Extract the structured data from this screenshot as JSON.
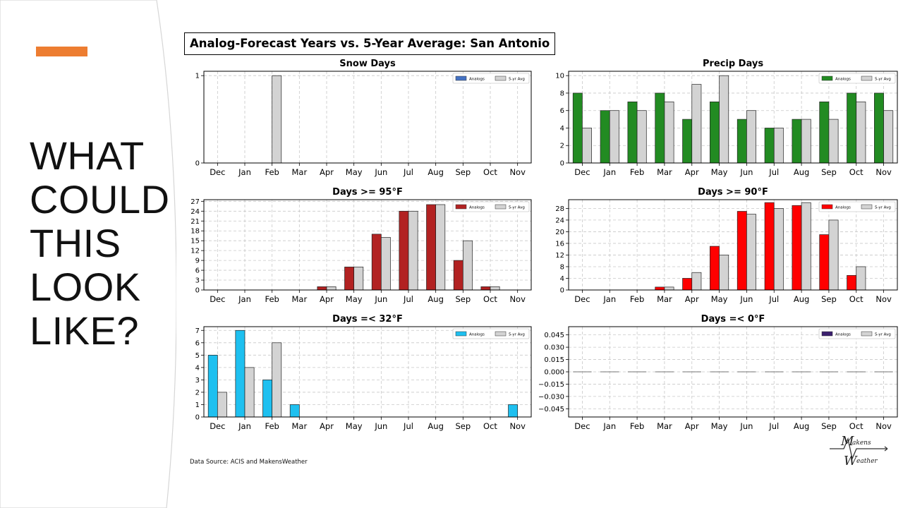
{
  "slide": {
    "heading_lines": [
      "WHAT",
      "COULD",
      "THIS",
      "LOOK",
      "LIKE?"
    ],
    "accent_color": "#ed7d31",
    "figure_title": "Analog-Forecast Years vs. 5-Year Average: San Antonio",
    "data_source": "Data Source: ACIS and MakensWeather",
    "logo": {
      "line1": "akens",
      "line2": "eather",
      "letter": "M",
      "letter2": "W"
    }
  },
  "chart_data": [
    {
      "type": "bar",
      "title": "Snow Days",
      "categories": [
        "Dec",
        "Jan",
        "Feb",
        "Mar",
        "Apr",
        "May",
        "Jun",
        "Jul",
        "Aug",
        "Sep",
        "Oct",
        "Nov"
      ],
      "ylim": [
        0,
        1.05
      ],
      "yticks": [
        0,
        1
      ],
      "ytick_labels": [
        "0",
        "1"
      ],
      "grid": true,
      "legend_position": "top-right",
      "series": [
        {
          "name": "Analogs",
          "color": "#4472c4",
          "values": [
            0,
            0,
            0,
            0,
            0,
            0,
            0,
            0,
            0,
            0,
            0,
            0
          ]
        },
        {
          "name": "5-yr Avg",
          "color": "#d3d3d3",
          "values": [
            0,
            0,
            1,
            0,
            0,
            0,
            0,
            0,
            0,
            0,
            0,
            0
          ]
        }
      ]
    },
    {
      "type": "bar",
      "title": "Precip Days",
      "categories": [
        "Dec",
        "Jan",
        "Feb",
        "Mar",
        "Apr",
        "May",
        "Jun",
        "Jul",
        "Aug",
        "Sep",
        "Oct",
        "Nov"
      ],
      "ylim": [
        0,
        10.5
      ],
      "yticks": [
        0,
        2,
        4,
        6,
        8,
        10
      ],
      "ytick_labels": [
        "0",
        "2",
        "4",
        "6",
        "8",
        "10"
      ],
      "grid": true,
      "legend_position": "top-right",
      "series": [
        {
          "name": "Analogs",
          "color": "#228b22",
          "values": [
            8,
            6,
            7,
            8,
            5,
            7,
            5,
            4,
            5,
            7,
            8,
            8
          ]
        },
        {
          "name": "5-yr Avg",
          "color": "#d3d3d3",
          "values": [
            4,
            6,
            6,
            7,
            9,
            10,
            6,
            4,
            5,
            5,
            7,
            6
          ]
        }
      ]
    },
    {
      "type": "bar",
      "title": "Days >= 95°F",
      "categories": [
        "Dec",
        "Jan",
        "Feb",
        "Mar",
        "Apr",
        "May",
        "Jun",
        "Jul",
        "Aug",
        "Sep",
        "Oct",
        "Nov"
      ],
      "ylim": [
        0,
        27.5
      ],
      "yticks": [
        0,
        3,
        6,
        9,
        12,
        15,
        18,
        21,
        24,
        27
      ],
      "ytick_labels": [
        "0",
        "3",
        "6",
        "9",
        "12",
        "15",
        "18",
        "21",
        "24",
        "27"
      ],
      "grid": true,
      "legend_position": "top-right",
      "series": [
        {
          "name": "Analogs",
          "color": "#b22222",
          "values": [
            0,
            0,
            0,
            0,
            1,
            7,
            17,
            24,
            26,
            9,
            1,
            0
          ]
        },
        {
          "name": "5-yr Avg",
          "color": "#d3d3d3",
          "values": [
            0,
            0,
            0,
            0,
            1,
            7,
            16,
            24,
            26,
            15,
            1,
            0
          ]
        }
      ]
    },
    {
      "type": "bar",
      "title": "Days >= 90°F",
      "categories": [
        "Dec",
        "Jan",
        "Feb",
        "Mar",
        "Apr",
        "May",
        "Jun",
        "Jul",
        "Aug",
        "Sep",
        "Oct",
        "Nov"
      ],
      "ylim": [
        0,
        31
      ],
      "yticks": [
        0,
        4,
        8,
        12,
        16,
        20,
        24,
        28
      ],
      "ytick_labels": [
        "0",
        "4",
        "8",
        "12",
        "16",
        "20",
        "24",
        "28"
      ],
      "grid": true,
      "legend_position": "top-right",
      "series": [
        {
          "name": "Analogs",
          "color": "#ff0000",
          "values": [
            0,
            0,
            0,
            1,
            4,
            15,
            27,
            30,
            29,
            19,
            5,
            0
          ]
        },
        {
          "name": "5-yr Avg",
          "color": "#d3d3d3",
          "values": [
            0,
            0,
            0,
            1,
            6,
            12,
            26,
            28,
            30,
            24,
            8,
            0
          ]
        }
      ]
    },
    {
      "type": "bar",
      "title": "Days =< 32°F",
      "categories": [
        "Dec",
        "Jan",
        "Feb",
        "Mar",
        "Apr",
        "May",
        "Jun",
        "Jul",
        "Aug",
        "Sep",
        "Oct",
        "Nov"
      ],
      "ylim": [
        0,
        7.3
      ],
      "yticks": [
        0,
        1,
        2,
        3,
        4,
        5,
        6,
        7
      ],
      "ytick_labels": [
        "0",
        "1",
        "2",
        "3",
        "4",
        "5",
        "6",
        "7"
      ],
      "grid": true,
      "legend_position": "top-right",
      "series": [
        {
          "name": "Analogs",
          "color": "#1ec0f0",
          "values": [
            5,
            7,
            3,
            1,
            0,
            0,
            0,
            0,
            0,
            0,
            0,
            1
          ]
        },
        {
          "name": "5-yr Avg",
          "color": "#d3d3d3",
          "values": [
            2,
            4,
            6,
            0,
            0,
            0,
            0,
            0,
            0,
            0,
            0,
            0
          ]
        }
      ]
    },
    {
      "type": "bar",
      "title": "Days =< 0°F",
      "categories": [
        "Dec",
        "Jan",
        "Feb",
        "Mar",
        "Apr",
        "May",
        "Jun",
        "Jul",
        "Aug",
        "Sep",
        "Oct",
        "Nov"
      ],
      "ylim": [
        -0.055,
        0.055
      ],
      "yticks": [
        -0.045,
        -0.03,
        -0.015,
        0,
        0.015,
        0.03,
        0.045
      ],
      "ytick_labels": [
        "−0.045",
        "−0.030",
        "−0.015",
        "0.000",
        "0.015",
        "0.030",
        "0.045"
      ],
      "grid": true,
      "legend_position": "top-right",
      "series": [
        {
          "name": "Analogs",
          "color": "#3b1f6e",
          "values": [
            0,
            0,
            0,
            0,
            0,
            0,
            0,
            0,
            0,
            0,
            0,
            0
          ]
        },
        {
          "name": "5-yr Avg",
          "color": "#d3d3d3",
          "values": [
            0,
            0,
            0,
            0,
            0,
            0,
            0,
            0,
            0,
            0,
            0,
            0
          ]
        }
      ]
    }
  ]
}
